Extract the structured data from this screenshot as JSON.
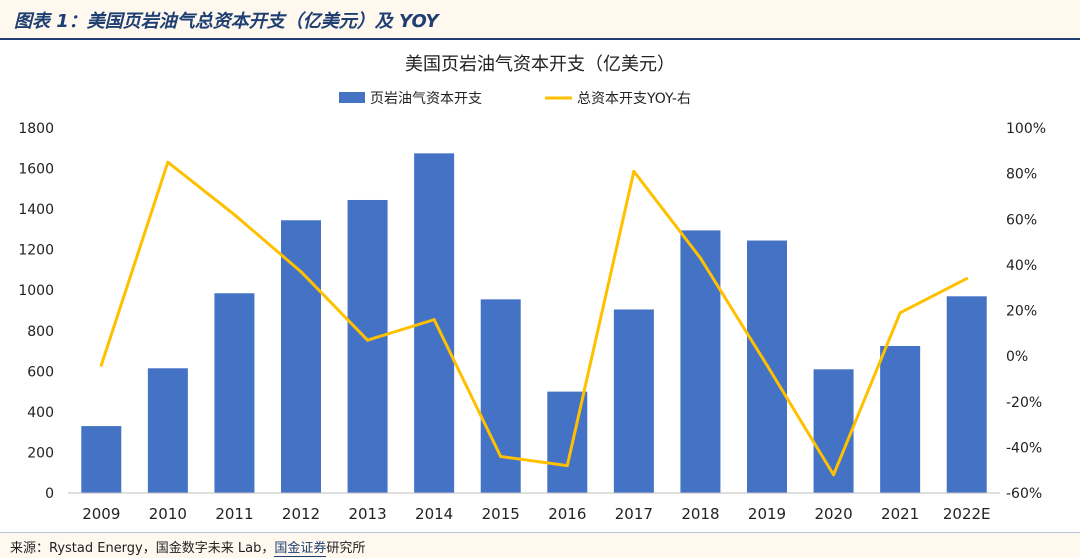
{
  "header": {
    "title": "图表 1：美国页岩油气总资本开支（亿美元）及 YOY"
  },
  "source": {
    "prefix": "来源：Rystad Energy，国金数字未来 Lab，",
    "emph": "国金证券",
    "suffix": "研究所"
  },
  "chart_data": {
    "type": "bar+line",
    "title": "美国页岩油气资本开支（亿美元）",
    "categories": [
      "2009",
      "2010",
      "2011",
      "2012",
      "2013",
      "2014",
      "2015",
      "2016",
      "2017",
      "2018",
      "2019",
      "2020",
      "2021",
      "2022E"
    ],
    "series": [
      {
        "name": "页岩油气资本开支",
        "kind": "bar",
        "axis": "left",
        "color": "#4472c4",
        "values": [
          330,
          615,
          985,
          1345,
          1445,
          1675,
          955,
          500,
          905,
          1295,
          1245,
          610,
          725,
          970
        ]
      },
      {
        "name": "总资本开支YOY-右",
        "kind": "line",
        "axis": "right",
        "color": "#ffc000",
        "values": [
          -4,
          85,
          62,
          37,
          7,
          16,
          -44,
          -48,
          81,
          43,
          -4,
          -52,
          19,
          34
        ]
      }
    ],
    "y_left": {
      "min": 0,
      "max": 1800,
      "ticks": [
        "0",
        "200",
        "400",
        "600",
        "800",
        "1000",
        "1200",
        "1400",
        "1600",
        "1800"
      ]
    },
    "y_right": {
      "min": -60,
      "max": 100,
      "ticks": [
        "-60%",
        "-40%",
        "-20%",
        "0%",
        "20%",
        "40%",
        "60%",
        "80%",
        "100%"
      ]
    },
    "legend_position": "top-center",
    "grid": false
  }
}
